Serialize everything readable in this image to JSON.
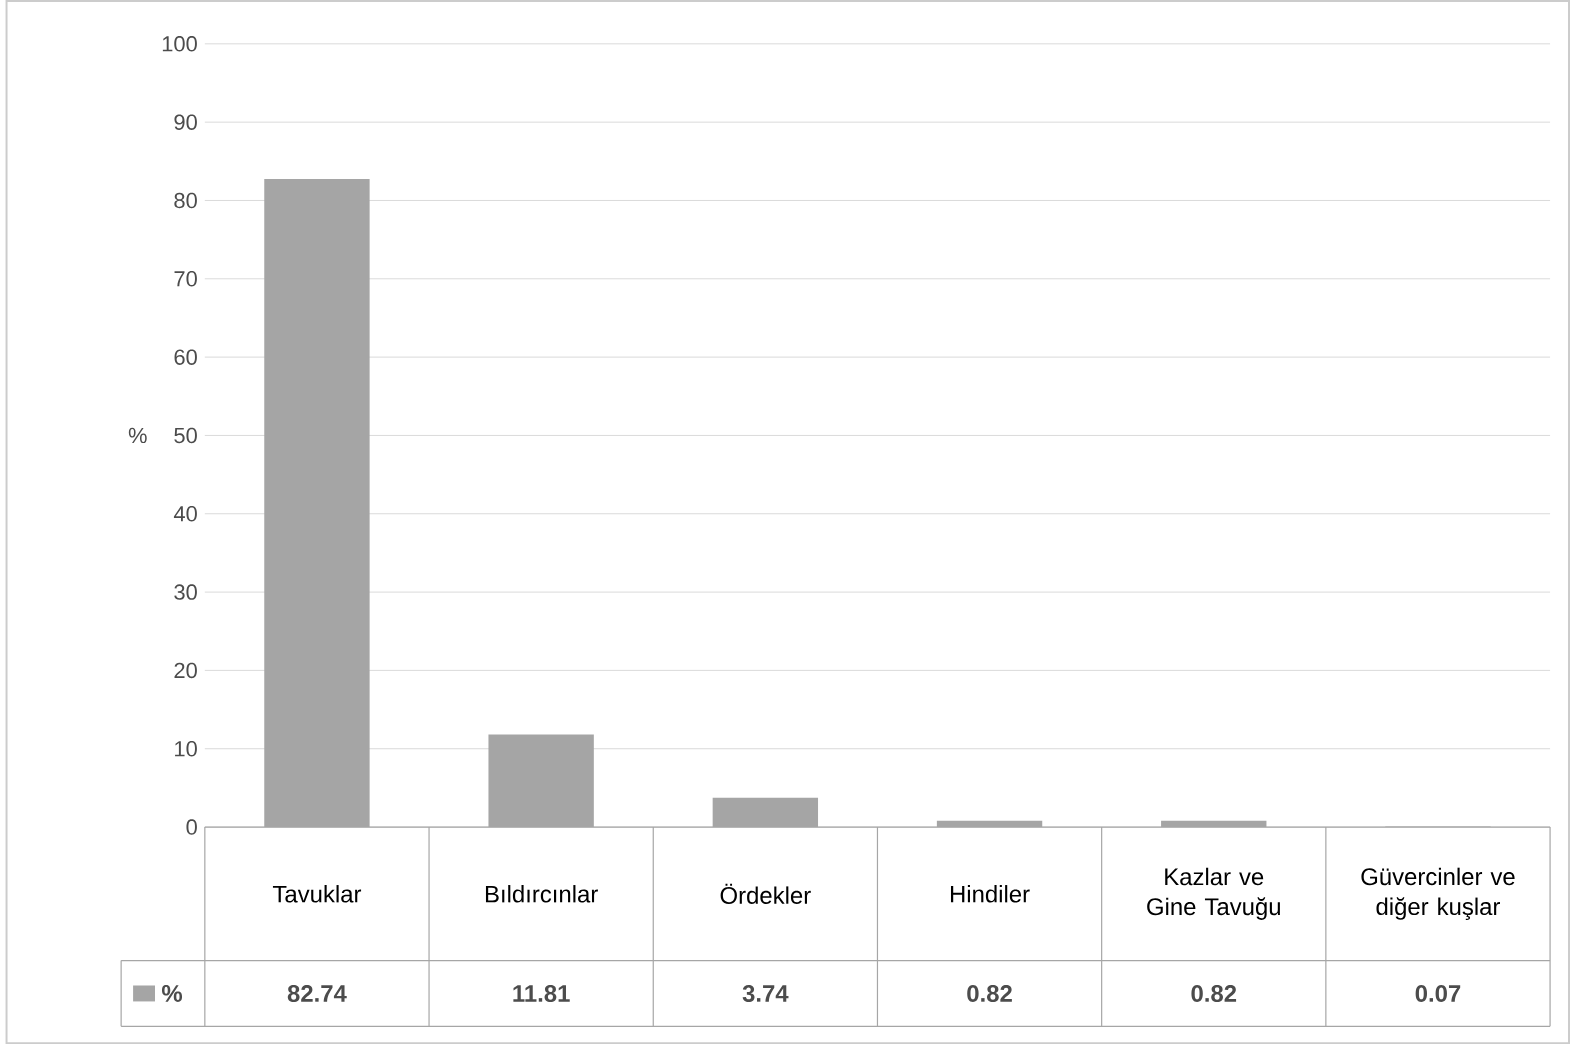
{
  "chart_data": {
    "type": "bar",
    "ylabel": "%",
    "categories": [
      "Tavuklar",
      "Bıldırcınlar",
      "Ördekler",
      "Hindiler",
      "Kazlar ve Gine Tavuğu",
      "Güvercinler ve diğer kuşlar"
    ],
    "series": [
      {
        "name": "%",
        "color": "#a5a5a5",
        "values": [
          82.74,
          11.81,
          3.74,
          0.82,
          0.82,
          0.07
        ]
      }
    ],
    "ylim": [
      0,
      100
    ],
    "yticks": [
      0,
      10,
      20,
      30,
      40,
      50,
      60,
      70,
      80,
      90,
      100
    ],
    "grid": "y",
    "legend": "bottom",
    "data_labels": true
  }
}
